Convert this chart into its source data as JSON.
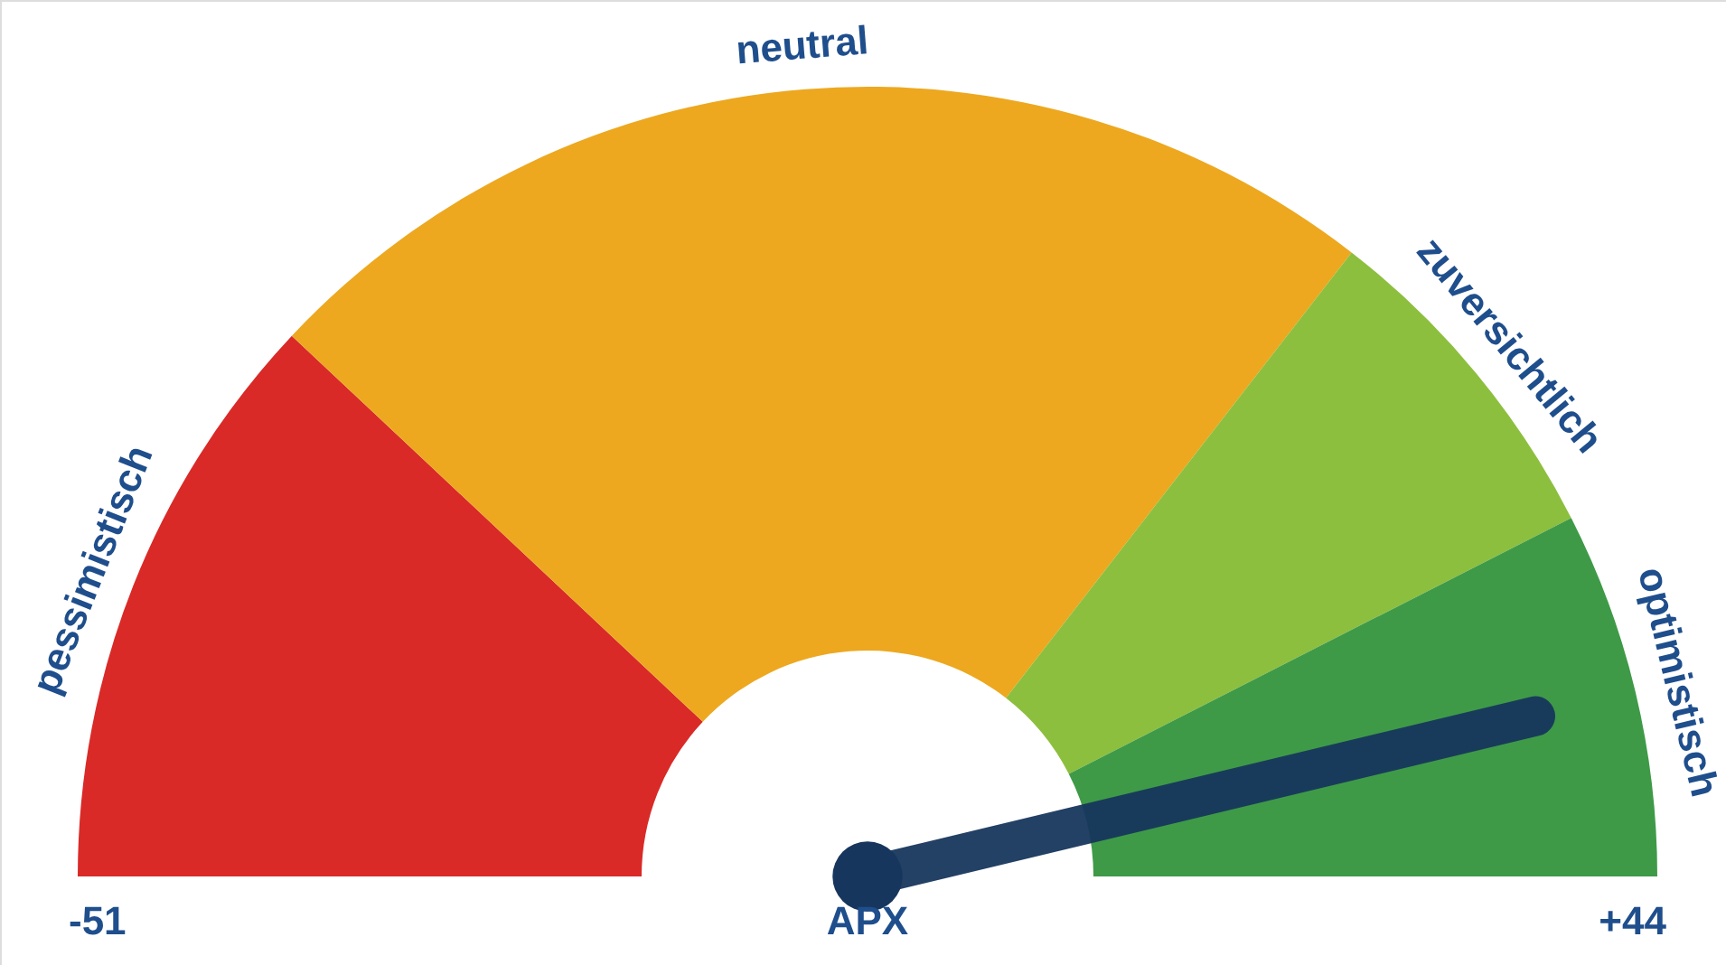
{
  "chart_data": {
    "type": "donut",
    "categories": [
      "pessimistisch",
      "neutral",
      "zuversichtlich",
      "optimistisch"
    ],
    "values": [
      24,
      47,
      14,
      15
    ],
    "colors": [
      "#d92a27",
      "#eda81f",
      "#8dbf3e",
      "#3e9a47"
    ],
    "needle": "optimistisch",
    "annotations": [
      "-51",
      "APX",
      "+44"
    ]
  }
}
